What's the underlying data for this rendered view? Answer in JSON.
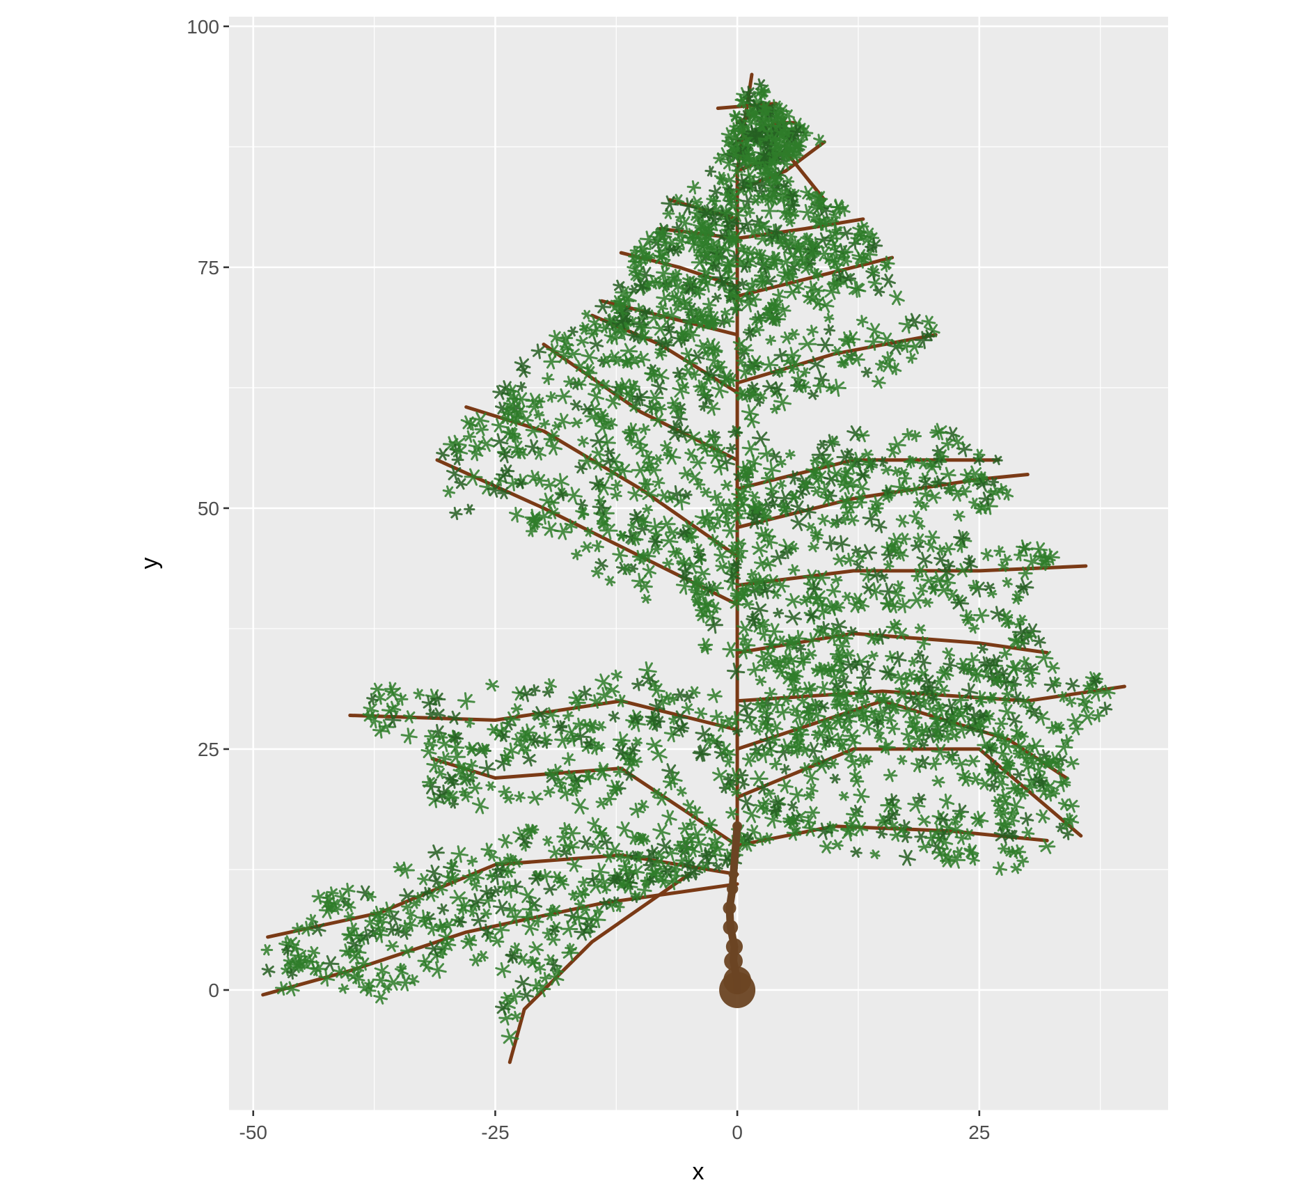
{
  "chart_data": {
    "type": "scatter",
    "title": "",
    "xlabel": "x",
    "ylabel": "y",
    "xlim": [
      -52.5,
      44.5
    ],
    "ylim": [
      -12.5,
      101
    ],
    "x_ticks": [
      -50,
      -25,
      0,
      25
    ],
    "y_ticks": [
      0,
      25,
      50,
      75,
      100
    ],
    "grid": true,
    "legend": "none",
    "colors": {
      "panel": "#ebebeb",
      "grid": "#ffffff",
      "trunk": "#6b4423",
      "branch": "#7a3a16",
      "foliage": "#2f7d2a",
      "foliage_dark": "#255f22"
    },
    "series": [
      {
        "role": "trunk",
        "points": [
          [
            0,
            0
          ],
          [
            0,
            1
          ],
          [
            -0.4,
            3
          ],
          [
            -0.3,
            4.5
          ],
          [
            -0.7,
            6.5
          ],
          [
            -0.8,
            8.5
          ],
          [
            -0.5,
            10.5
          ],
          [
            -0.4,
            12
          ],
          [
            0,
            17
          ]
        ]
      },
      {
        "role": "branches",
        "lines": [
          [
            [
              0,
              12
            ],
            [
              -12,
              14
            ],
            [
              -25,
              13
            ],
            [
              -37,
              8
            ],
            [
              -48.5,
              5.5
            ]
          ],
          [
            [
              0,
              11
            ],
            [
              -14,
              9
            ],
            [
              -28,
              6
            ],
            [
              -40,
              2
            ],
            [
              -49,
              -0.5
            ]
          ],
          [
            [
              -5,
              12
            ],
            [
              -15,
              5
            ],
            [
              -22,
              -2
            ],
            [
              -23.5,
              -7.5
            ]
          ],
          [
            [
              0,
              15
            ],
            [
              -12,
              23
            ],
            [
              -25,
              22
            ],
            [
              -31.5,
              24
            ]
          ],
          [
            [
              0,
              27
            ],
            [
              -12,
              30
            ],
            [
              -25,
              28
            ],
            [
              -40,
              28.5
            ]
          ],
          [
            [
              0,
              40
            ],
            [
              -10,
              45
            ],
            [
              -20,
              50
            ],
            [
              -31,
              55
            ]
          ],
          [
            [
              0,
              45
            ],
            [
              -10,
              52
            ],
            [
              -20,
              58
            ],
            [
              -28,
              60.5
            ]
          ],
          [
            [
              0,
              55
            ],
            [
              -10,
              60
            ],
            [
              -20,
              67
            ]
          ],
          [
            [
              0,
              62
            ],
            [
              -8,
              67
            ],
            [
              -15,
              70
            ]
          ],
          [
            [
              0,
              68
            ],
            [
              -8,
              70
            ],
            [
              -14,
              71.5
            ]
          ],
          [
            [
              0,
              73
            ],
            [
              -6,
              75
            ],
            [
              -12,
              76.5
            ]
          ],
          [
            [
              0,
              78
            ],
            [
              -8,
              79
            ]
          ],
          [
            [
              0,
              80
            ],
            [
              -7,
              82
            ]
          ],
          [
            [
              0,
              15
            ],
            [
              10,
              17
            ],
            [
              22,
              16.5
            ],
            [
              32,
              15.5
            ]
          ],
          [
            [
              0,
              20
            ],
            [
              12,
              25
            ],
            [
              25,
              25
            ],
            [
              35.5,
              16
            ]
          ],
          [
            [
              0,
              25
            ],
            [
              15,
              30
            ],
            [
              28,
              26
            ],
            [
              34,
              22
            ]
          ],
          [
            [
              0,
              30
            ],
            [
              15,
              31
            ],
            [
              30,
              30
            ],
            [
              40,
              31.5
            ]
          ],
          [
            [
              0,
              35
            ],
            [
              12,
              37
            ],
            [
              25,
              36
            ],
            [
              32,
              35
            ]
          ],
          [
            [
              0,
              42
            ],
            [
              12,
              43.5
            ],
            [
              25,
              43.5
            ],
            [
              36,
              44
            ]
          ],
          [
            [
              0,
              48
            ],
            [
              12,
              51
            ],
            [
              25,
              53
            ],
            [
              30,
              53.5
            ]
          ],
          [
            [
              0,
              52
            ],
            [
              12,
              55
            ],
            [
              27,
              55
            ]
          ],
          [
            [
              0,
              63
            ],
            [
              10,
              66
            ],
            [
              20.5,
              68
            ]
          ],
          [
            [
              0,
              72
            ],
            [
              8,
              74
            ],
            [
              16,
              76
            ]
          ],
          [
            [
              0,
              78
            ],
            [
              7,
              79
            ],
            [
              13,
              80
            ]
          ],
          [
            [
              0,
              83
            ],
            [
              5,
              85
            ],
            [
              9,
              88
            ]
          ],
          [
            [
              0,
              85
            ],
            [
              5,
              87
            ],
            [
              9,
              82
            ]
          ],
          [
            [
              0,
              88
            ],
            [
              4,
              90
            ],
            [
              6,
              90
            ]
          ],
          [
            [
              0,
              90
            ],
            [
              4,
              92
            ],
            [
              -2,
              91.5
            ]
          ],
          [
            [
              0,
              85
            ],
            [
              1.5,
              95
            ]
          ],
          [
            [
              0,
              17
            ],
            [
              0,
              85
            ]
          ]
        ]
      },
      {
        "role": "foliage",
        "outline": [
          [
            -49,
            -0.5
          ],
          [
            -48.5,
            5.5
          ],
          [
            -40,
            13
          ],
          [
            -35,
            20
          ],
          [
            -31.5,
            24
          ],
          [
            -40,
            28.5
          ],
          [
            -30,
            40
          ],
          [
            -31,
            55
          ],
          [
            -28,
            60.5
          ],
          [
            -20,
            67
          ],
          [
            -14,
            71.5
          ],
          [
            -12,
            76.5
          ],
          [
            -8,
            79
          ],
          [
            -7,
            82
          ],
          [
            -2,
            86
          ],
          [
            1.5,
            95
          ],
          [
            6,
            90
          ],
          [
            9,
            88
          ],
          [
            4,
            85
          ],
          [
            13,
            80
          ],
          [
            16,
            76
          ],
          [
            20.5,
            68
          ],
          [
            15,
            62
          ],
          [
            27,
            55
          ],
          [
            30,
            53.5
          ],
          [
            25,
            48
          ],
          [
            36,
            44
          ],
          [
            30,
            38
          ],
          [
            32,
            35
          ],
          [
            40,
            31.5
          ],
          [
            34,
            22
          ],
          [
            35.5,
            16
          ],
          [
            32,
            13
          ],
          [
            20,
            10
          ],
          [
            13,
            14
          ],
          [
            5,
            15
          ],
          [
            -10,
            10
          ],
          [
            -15,
            5
          ],
          [
            -22,
            -2
          ],
          [
            -23.5,
            -7.5
          ],
          [
            -25,
            0
          ],
          [
            -35,
            -1
          ],
          [
            -45,
            0
          ]
        ]
      }
    ]
  }
}
